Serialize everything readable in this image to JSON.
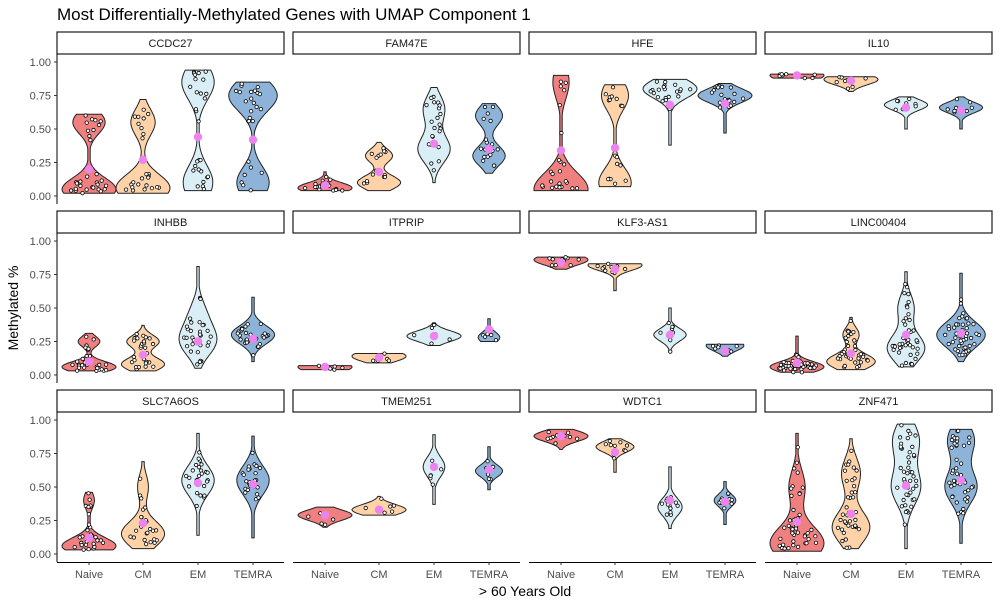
{
  "chart_data": {
    "type": "violin",
    "title": "Most Differentially-Methylated Genes with UMAP Component 1",
    "xlabel": "> 60 Years Old",
    "ylabel": "Methylated %",
    "categories": [
      "Naive",
      "CM",
      "EM",
      "TEMRA"
    ],
    "yticks": [
      "0.00",
      "0.25",
      "0.50",
      "0.75",
      "1.00"
    ],
    "ylim": [
      0,
      1.0
    ],
    "colors": {
      "Naive": "#f08080",
      "CM": "#ffd2a8",
      "EM": "#d9eef5",
      "TEMRA": "#8db4d8",
      "mean": "#ee82ee"
    },
    "panels": [
      {
        "gene": "CCDC27",
        "groups": [
          {
            "min": 0.02,
            "max": 0.61,
            "mean": 0.2,
            "n": 30,
            "peaks": [
              [
                0.05,
                1.0
              ],
              [
                0.55,
                0.6
              ]
            ]
          },
          {
            "min": 0.02,
            "max": 0.72,
            "mean": 0.27,
            "n": 25,
            "peaks": [
              [
                0.06,
                1.0
              ],
              [
                0.55,
                0.45
              ]
            ]
          },
          {
            "min": 0.04,
            "max": 0.94,
            "mean": 0.44,
            "n": 28,
            "peaks": [
              [
                0.1,
                0.55
              ],
              [
                0.85,
                0.6
              ]
            ]
          },
          {
            "min": 0.04,
            "max": 0.85,
            "mean": 0.42,
            "n": 26,
            "peaks": [
              [
                0.1,
                0.6
              ],
              [
                0.75,
                0.9
              ]
            ]
          }
        ]
      },
      {
        "gene": "FAM47E",
        "groups": [
          {
            "min": 0.04,
            "max": 0.18,
            "mean": 0.08,
            "n": 18,
            "peaks": [
              [
                0.06,
                1.0
              ]
            ]
          },
          {
            "min": 0.04,
            "max": 0.4,
            "mean": 0.18,
            "n": 16,
            "peaks": [
              [
                0.1,
                0.8
              ],
              [
                0.3,
                0.5
              ]
            ]
          },
          {
            "min": 0.1,
            "max": 0.81,
            "mean": 0.39,
            "n": 22,
            "peaks": [
              [
                0.35,
                0.6
              ],
              [
                0.65,
                0.4
              ]
            ]
          },
          {
            "min": 0.17,
            "max": 0.69,
            "mean": 0.35,
            "n": 20,
            "peaks": [
              [
                0.3,
                0.6
              ],
              [
                0.6,
                0.5
              ]
            ]
          }
        ]
      },
      {
        "gene": "HFE",
        "groups": [
          {
            "min": 0.04,
            "max": 0.9,
            "mean": 0.34,
            "n": 24,
            "peaks": [
              [
                0.05,
                1.0
              ],
              [
                0.85,
                0.3
              ]
            ]
          },
          {
            "min": 0.07,
            "max": 0.83,
            "mean": 0.36,
            "n": 20,
            "peaks": [
              [
                0.1,
                0.6
              ],
              [
                0.75,
                0.5
              ]
            ]
          },
          {
            "min": 0.38,
            "max": 0.87,
            "mean": 0.68,
            "n": 22,
            "peaks": [
              [
                0.8,
                1.0
              ]
            ]
          },
          {
            "min": 0.47,
            "max": 0.84,
            "mean": 0.69,
            "n": 22,
            "peaks": [
              [
                0.75,
                1.0
              ]
            ]
          }
        ]
      },
      {
        "gene": "IL10",
        "groups": [
          {
            "min": 0.88,
            "max": 0.91,
            "mean": 0.9,
            "n": 8,
            "peaks": [
              [
                0.9,
                1.0
              ]
            ]
          },
          {
            "min": 0.78,
            "max": 0.89,
            "mean": 0.86,
            "n": 8,
            "peaks": [
              [
                0.87,
                1.0
              ]
            ]
          },
          {
            "min": 0.5,
            "max": 0.74,
            "mean": 0.66,
            "n": 8,
            "peaks": [
              [
                0.68,
                0.8
              ]
            ]
          },
          {
            "min": 0.5,
            "max": 0.74,
            "mean": 0.64,
            "n": 8,
            "peaks": [
              [
                0.66,
                0.8
              ]
            ]
          }
        ]
      },
      {
        "gene": "INHBB",
        "groups": [
          {
            "min": 0.03,
            "max": 0.31,
            "mean": 0.1,
            "n": 30,
            "peaks": [
              [
                0.06,
                1.0
              ],
              [
                0.25,
                0.4
              ]
            ]
          },
          {
            "min": 0.03,
            "max": 0.37,
            "mean": 0.15,
            "n": 30,
            "peaks": [
              [
                0.08,
                0.8
              ],
              [
                0.25,
                0.6
              ]
            ]
          },
          {
            "min": 0.05,
            "max": 0.81,
            "mean": 0.25,
            "n": 30,
            "peaks": [
              [
                0.25,
                0.7
              ],
              [
                0.45,
                0.3
              ]
            ]
          },
          {
            "min": 0.1,
            "max": 0.58,
            "mean": 0.27,
            "n": 30,
            "peaks": [
              [
                0.3,
                0.8
              ]
            ]
          }
        ]
      },
      {
        "gene": "ITPRIP",
        "groups": [
          {
            "min": 0.04,
            "max": 0.07,
            "mean": 0.06,
            "n": 6,
            "peaks": [
              [
                0.06,
                1.0
              ]
            ]
          },
          {
            "min": 0.09,
            "max": 0.16,
            "mean": 0.13,
            "n": 6,
            "peaks": [
              [
                0.14,
                1.0
              ]
            ]
          },
          {
            "min": 0.22,
            "max": 0.39,
            "mean": 0.29,
            "n": 6,
            "peaks": [
              [
                0.29,
                1.0
              ]
            ]
          },
          {
            "min": 0.25,
            "max": 0.42,
            "mean": 0.34,
            "n": 6,
            "peaks": [
              [
                0.28,
                0.4
              ]
            ]
          }
        ]
      },
      {
        "gene": "KLF3-AS1",
        "groups": [
          {
            "min": 0.79,
            "max": 0.88,
            "mean": 0.84,
            "n": 10,
            "peaks": [
              [
                0.86,
                1.0
              ]
            ]
          },
          {
            "min": 0.63,
            "max": 0.83,
            "mean": 0.79,
            "n": 10,
            "peaks": [
              [
                0.82,
                1.0
              ]
            ]
          },
          {
            "min": 0.17,
            "max": 0.5,
            "mean": 0.3,
            "n": 10,
            "peaks": [
              [
                0.3,
                0.6
              ]
            ]
          },
          {
            "min": 0.14,
            "max": 0.23,
            "mean": 0.18,
            "n": 8,
            "peaks": [
              [
                0.22,
                0.7
              ]
            ]
          }
        ]
      },
      {
        "gene": "LINC00404",
        "groups": [
          {
            "min": 0.02,
            "max": 0.29,
            "mean": 0.09,
            "n": 40,
            "peaks": [
              [
                0.06,
                1.0
              ]
            ]
          },
          {
            "min": 0.04,
            "max": 0.43,
            "mean": 0.16,
            "n": 40,
            "peaks": [
              [
                0.1,
                0.9
              ],
              [
                0.3,
                0.3
              ]
            ]
          },
          {
            "min": 0.06,
            "max": 0.77,
            "mean": 0.3,
            "n": 45,
            "peaks": [
              [
                0.2,
                0.7
              ],
              [
                0.5,
                0.3
              ]
            ]
          },
          {
            "min": 0.1,
            "max": 0.76,
            "mean": 0.31,
            "n": 45,
            "peaks": [
              [
                0.3,
                0.9
              ]
            ]
          }
        ]
      },
      {
        "gene": "SLC7A6OS",
        "groups": [
          {
            "min": 0.03,
            "max": 0.46,
            "mean": 0.12,
            "n": 28,
            "peaks": [
              [
                0.06,
                1.0
              ],
              [
                0.4,
                0.2
              ]
            ]
          },
          {
            "min": 0.04,
            "max": 0.69,
            "mean": 0.23,
            "n": 24,
            "peaks": [
              [
                0.15,
                0.8
              ],
              [
                0.5,
                0.2
              ]
            ]
          },
          {
            "min": 0.14,
            "max": 0.9,
            "mean": 0.53,
            "n": 26,
            "peaks": [
              [
                0.55,
                0.6
              ]
            ]
          },
          {
            "min": 0.12,
            "max": 0.88,
            "mean": 0.52,
            "n": 26,
            "peaks": [
              [
                0.55,
                0.6
              ]
            ]
          }
        ]
      },
      {
        "gene": "TMEM251",
        "groups": [
          {
            "min": 0.2,
            "max": 0.35,
            "mean": 0.29,
            "n": 6,
            "peaks": [
              [
                0.29,
                1.0
              ]
            ]
          },
          {
            "min": 0.29,
            "max": 0.43,
            "mean": 0.33,
            "n": 6,
            "peaks": [
              [
                0.33,
                1.0
              ]
            ]
          },
          {
            "min": 0.37,
            "max": 0.89,
            "mean": 0.65,
            "n": 6,
            "peaks": [
              [
                0.65,
                0.4
              ]
            ]
          },
          {
            "min": 0.48,
            "max": 0.8,
            "mean": 0.63,
            "n": 6,
            "peaks": [
              [
                0.62,
                0.5
              ]
            ]
          }
        ]
      },
      {
        "gene": "WDTC1",
        "groups": [
          {
            "min": 0.78,
            "max": 0.93,
            "mean": 0.88,
            "n": 10,
            "peaks": [
              [
                0.88,
                1.0
              ]
            ]
          },
          {
            "min": 0.61,
            "max": 0.86,
            "mean": 0.76,
            "n": 10,
            "peaks": [
              [
                0.8,
                0.7
              ]
            ]
          },
          {
            "min": 0.19,
            "max": 0.65,
            "mean": 0.4,
            "n": 12,
            "peaks": [
              [
                0.35,
                0.45
              ]
            ]
          },
          {
            "min": 0.22,
            "max": 0.54,
            "mean": 0.39,
            "n": 10,
            "peaks": [
              [
                0.4,
                0.4
              ]
            ]
          }
        ]
      },
      {
        "gene": "ZNF471",
        "groups": [
          {
            "min": 0.02,
            "max": 0.9,
            "mean": 0.24,
            "n": 45,
            "peaks": [
              [
                0.08,
                1.0
              ],
              [
                0.5,
                0.3
              ]
            ]
          },
          {
            "min": 0.04,
            "max": 0.86,
            "mean": 0.3,
            "n": 40,
            "peaks": [
              [
                0.2,
                0.7
              ],
              [
                0.6,
                0.35
              ]
            ]
          },
          {
            "min": 0.04,
            "max": 0.97,
            "mean": 0.51,
            "n": 45,
            "peaks": [
              [
                0.5,
                0.55
              ],
              [
                0.85,
                0.5
              ]
            ]
          },
          {
            "min": 0.08,
            "max": 0.93,
            "mean": 0.55,
            "n": 45,
            "peaks": [
              [
                0.5,
                0.6
              ],
              [
                0.85,
                0.5
              ]
            ]
          }
        ]
      }
    ]
  }
}
